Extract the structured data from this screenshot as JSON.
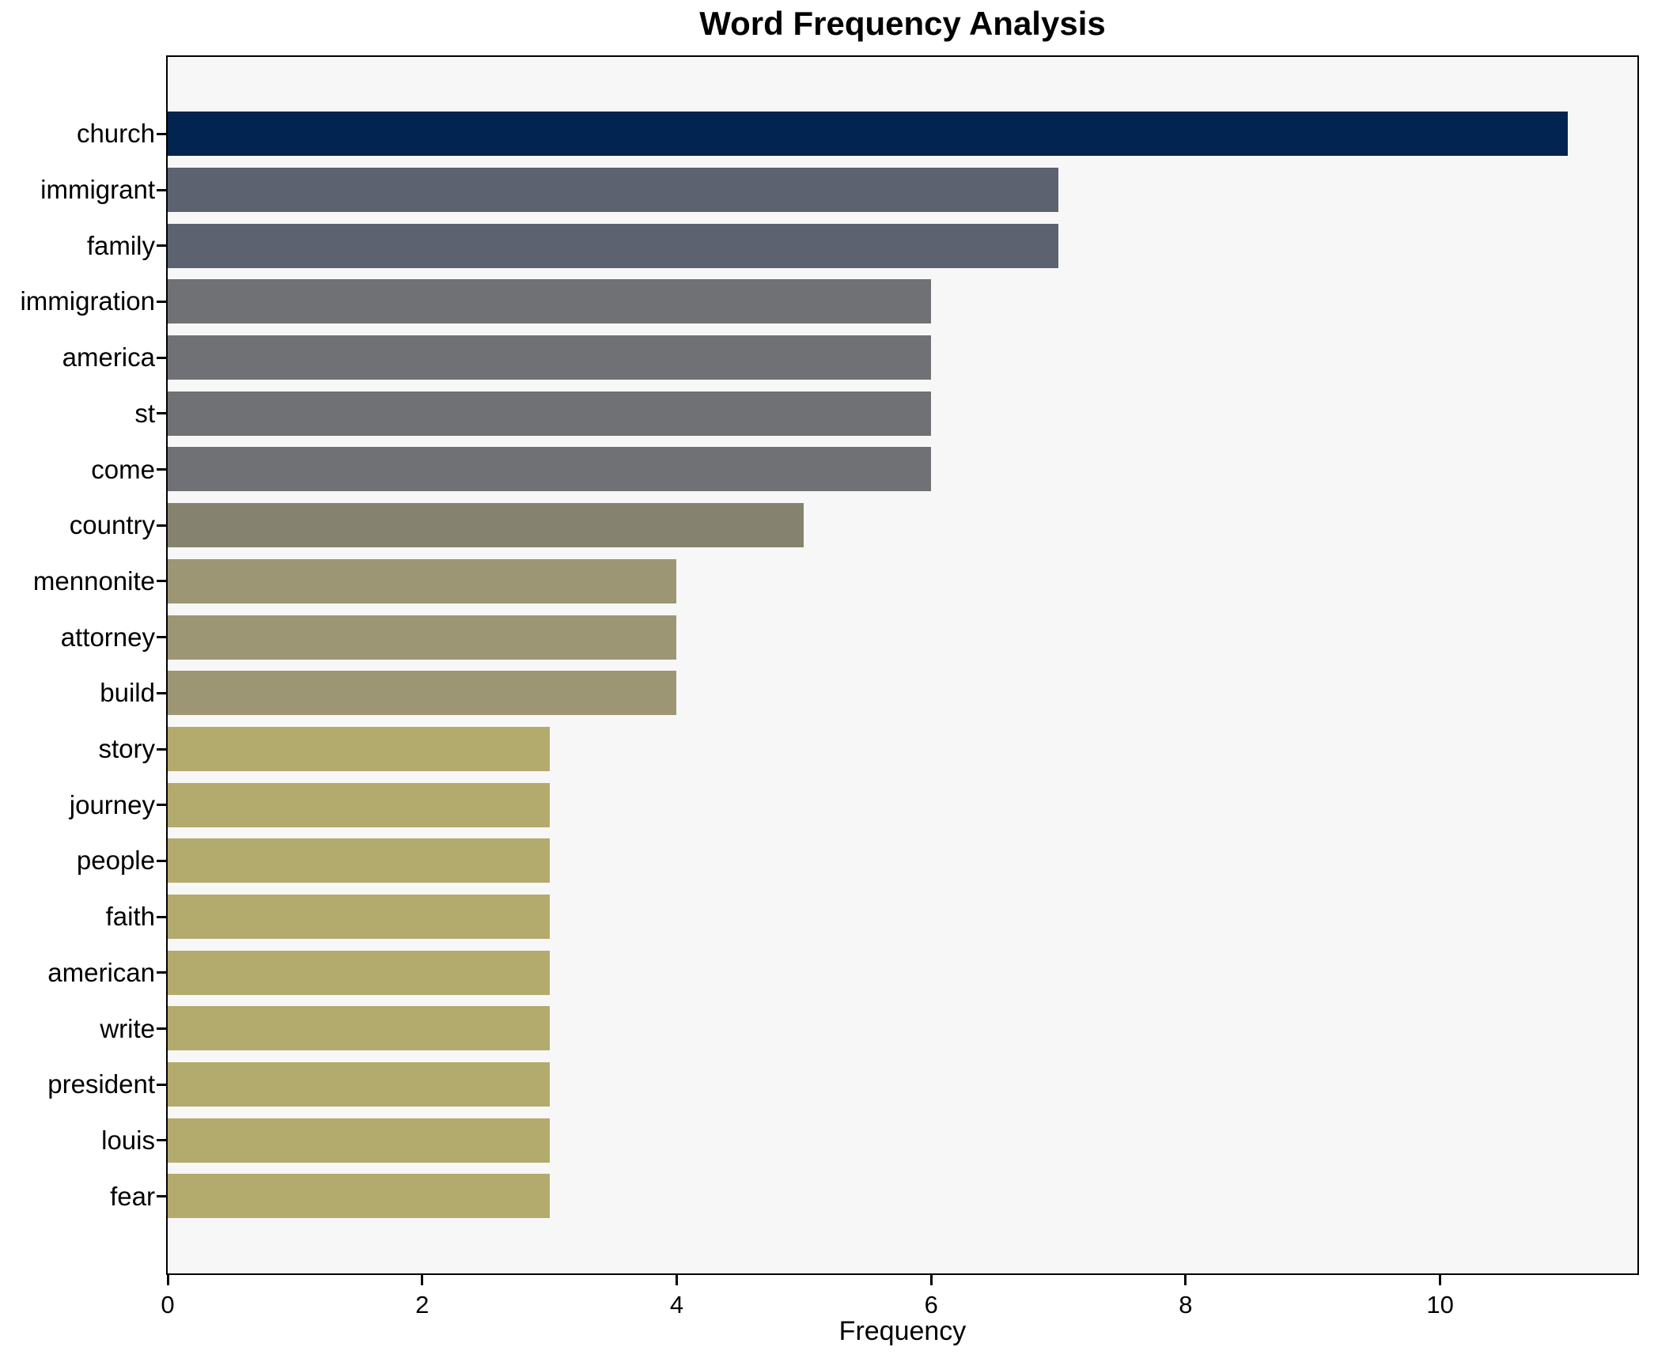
{
  "figure": {
    "background": "#ffffff",
    "plot_background": "#f7f7f7",
    "spine_color": "#000000"
  },
  "chart_data": {
    "type": "bar",
    "orientation": "horizontal",
    "title": "Word Frequency Analysis",
    "xlabel": "Frequency",
    "ylabel": "",
    "categories": [
      "church",
      "immigrant",
      "family",
      "immigration",
      "america",
      "st",
      "come",
      "country",
      "mennonite",
      "attorney",
      "build",
      "story",
      "journey",
      "people",
      "faith",
      "american",
      "write",
      "president",
      "louis",
      "fear"
    ],
    "values": [
      11,
      7,
      7,
      6,
      6,
      6,
      6,
      5,
      4,
      4,
      4,
      3,
      3,
      3,
      3,
      3,
      3,
      3,
      3,
      3
    ],
    "bar_colors": [
      "#022450",
      "#5d6270",
      "#5d6270",
      "#707174",
      "#707174",
      "#707174",
      "#707174",
      "#85826f",
      "#9c9674",
      "#9c9674",
      "#9c9674",
      "#b3aa6e",
      "#b3aa6e",
      "#b3aa6e",
      "#b3aa6e",
      "#b3aa6e",
      "#b3aa6e",
      "#b3aa6e",
      "#b3aa6e",
      "#b3aa6e"
    ],
    "xlim": [
      0,
      11.55
    ],
    "xticks": [
      0,
      2,
      4,
      6,
      8,
      10
    ],
    "grid": false,
    "legend": null
  }
}
